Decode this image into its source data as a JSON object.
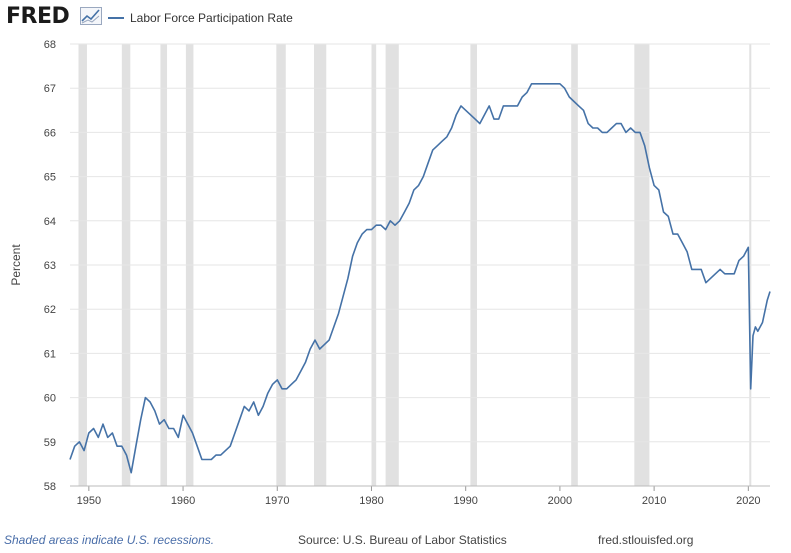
{
  "header": {
    "logo_text": "FRED",
    "logo_icon": "chart-line-icon"
  },
  "chart_data": {
    "type": "line",
    "title": "",
    "legend": [
      "Labor Force Participation Rate"
    ],
    "legend_position": "top-left",
    "xlabel": "",
    "ylabel": "Percent",
    "xlim": [
      1948,
      2022.3
    ],
    "ylim": [
      58,
      68
    ],
    "x_ticks": [
      1950,
      1960,
      1970,
      1980,
      1990,
      2000,
      2010,
      2020
    ],
    "y_ticks": [
      58,
      59,
      60,
      61,
      62,
      63,
      64,
      65,
      66,
      67,
      68
    ],
    "grid": true,
    "line_color": "#4572a7",
    "recession_color": "#e1e1e1",
    "recessions": [
      [
        1948.9,
        1949.8
      ],
      [
        1953.5,
        1954.4
      ],
      [
        1957.6,
        1958.3
      ],
      [
        1960.3,
        1961.1
      ],
      [
        1969.9,
        1970.9
      ],
      [
        1973.9,
        1975.2
      ],
      [
        1980.0,
        1980.5
      ],
      [
        1981.5,
        1982.9
      ],
      [
        1990.5,
        1991.2
      ],
      [
        2001.2,
        2001.9
      ],
      [
        2007.9,
        2009.5
      ],
      [
        2020.1,
        2020.3
      ]
    ],
    "series": [
      {
        "name": "Labor Force Participation Rate",
        "x": [
          1948.0,
          1948.5,
          1949.0,
          1949.5,
          1950.0,
          1950.5,
          1951.0,
          1951.5,
          1952.0,
          1952.5,
          1953.0,
          1953.5,
          1954.0,
          1954.5,
          1955.0,
          1955.5,
          1956.0,
          1956.5,
          1957.0,
          1957.5,
          1958.0,
          1958.5,
          1959.0,
          1959.5,
          1960.0,
          1960.5,
          1961.0,
          1961.5,
          1962.0,
          1962.5,
          1963.0,
          1963.5,
          1964.0,
          1964.5,
          1965.0,
          1965.5,
          1966.0,
          1966.5,
          1967.0,
          1967.5,
          1968.0,
          1968.5,
          1969.0,
          1969.5,
          1970.0,
          1970.5,
          1971.0,
          1971.5,
          1972.0,
          1972.5,
          1973.0,
          1973.5,
          1974.0,
          1974.5,
          1975.0,
          1975.5,
          1976.0,
          1976.5,
          1977.0,
          1977.5,
          1978.0,
          1978.5,
          1979.0,
          1979.5,
          1980.0,
          1980.5,
          1981.0,
          1981.5,
          1982.0,
          1982.5,
          1983.0,
          1983.5,
          1984.0,
          1984.5,
          1985.0,
          1985.5,
          1986.0,
          1986.5,
          1987.0,
          1987.5,
          1988.0,
          1988.5,
          1989.0,
          1989.5,
          1990.0,
          1990.5,
          1991.0,
          1991.5,
          1992.0,
          1992.5,
          1993.0,
          1993.5,
          1994.0,
          1994.5,
          1995.0,
          1995.5,
          1996.0,
          1996.5,
          1997.0,
          1997.5,
          1998.0,
          1998.5,
          1999.0,
          1999.5,
          2000.0,
          2000.5,
          2001.0,
          2001.5,
          2002.0,
          2002.5,
          2003.0,
          2003.5,
          2004.0,
          2004.5,
          2005.0,
          2005.5,
          2006.0,
          2006.5,
          2007.0,
          2007.5,
          2008.0,
          2008.5,
          2009.0,
          2009.5,
          2010.0,
          2010.5,
          2011.0,
          2011.5,
          2012.0,
          2012.5,
          2013.0,
          2013.5,
          2014.0,
          2014.5,
          2015.0,
          2015.5,
          2016.0,
          2016.5,
          2017.0,
          2017.5,
          2018.0,
          2018.5,
          2019.0,
          2019.5,
          2020.0,
          2020.25,
          2020.5,
          2020.75,
          2021.0,
          2021.5,
          2022.0,
          2022.3
        ],
        "values": [
          58.6,
          58.9,
          59.0,
          58.8,
          59.2,
          59.3,
          59.1,
          59.4,
          59.1,
          59.2,
          58.9,
          58.9,
          58.7,
          58.3,
          58.9,
          59.5,
          60.0,
          59.9,
          59.7,
          59.4,
          59.5,
          59.3,
          59.3,
          59.1,
          59.6,
          59.4,
          59.2,
          58.9,
          58.6,
          58.6,
          58.6,
          58.7,
          58.7,
          58.8,
          58.9,
          59.2,
          59.5,
          59.8,
          59.7,
          59.9,
          59.6,
          59.8,
          60.1,
          60.3,
          60.4,
          60.2,
          60.2,
          60.3,
          60.4,
          60.6,
          60.8,
          61.1,
          61.3,
          61.1,
          61.2,
          61.3,
          61.6,
          61.9,
          62.3,
          62.7,
          63.2,
          63.5,
          63.7,
          63.8,
          63.8,
          63.9,
          63.9,
          63.8,
          64.0,
          63.9,
          64.0,
          64.2,
          64.4,
          64.7,
          64.8,
          65.0,
          65.3,
          65.6,
          65.7,
          65.8,
          65.9,
          66.1,
          66.4,
          66.6,
          66.5,
          66.4,
          66.3,
          66.2,
          66.4,
          66.6,
          66.3,
          66.3,
          66.6,
          66.6,
          66.6,
          66.6,
          66.8,
          66.9,
          67.1,
          67.1,
          67.1,
          67.1,
          67.1,
          67.1,
          67.1,
          67.0,
          66.8,
          66.7,
          66.6,
          66.5,
          66.2,
          66.1,
          66.1,
          66.0,
          66.0,
          66.1,
          66.2,
          66.2,
          66.0,
          66.1,
          66.0,
          66.0,
          65.7,
          65.2,
          64.8,
          64.7,
          64.2,
          64.1,
          63.7,
          63.7,
          63.5,
          63.3,
          62.9,
          62.9,
          62.9,
          62.6,
          62.7,
          62.8,
          62.9,
          62.8,
          62.8,
          62.8,
          63.1,
          63.2,
          63.4,
          60.2,
          61.4,
          61.6,
          61.5,
          61.7,
          62.2,
          62.4
        ]
      }
    ],
    "source_note": "Shaded areas indicate U.S. recessions.",
    "source": "Source: U.S. Bureau of Labor Statistics",
    "site": "fred.stlouisfed.org"
  }
}
